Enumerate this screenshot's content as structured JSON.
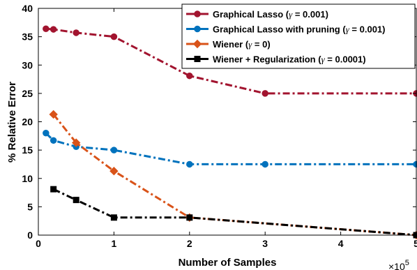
{
  "chart_data": {
    "type": "line",
    "xlabel": "Number of Samples",
    "ylabel": "% Relative Error",
    "x_multiplier": "×10",
    "x_multiplier_exp": "5",
    "xlim": [
      0,
      5
    ],
    "ylim": [
      0,
      40
    ],
    "xticks": [
      "0",
      "1",
      "2",
      "3",
      "4",
      "5"
    ],
    "yticks": [
      "0",
      "5",
      "10",
      "15",
      "20",
      "25",
      "30",
      "35",
      "40"
    ],
    "legend_position": "top-right",
    "series": [
      {
        "name": "Graphical Lasso (γ = 0.001)",
        "label_parts": [
          "Graphical Lasso (",
          "γ",
          " = 0.001)"
        ],
        "color": "#A2142F",
        "marker": "circle",
        "x": [
          0.1,
          0.2,
          0.5,
          1,
          2,
          3,
          5
        ],
        "y": [
          36.4,
          36.3,
          35.7,
          35.0,
          28.1,
          25.0,
          25.0
        ]
      },
      {
        "name": "Graphical Lasso with pruning (γ = 0.001)",
        "label_parts": [
          "Graphical Lasso with pruning (",
          "γ",
          " = 0.001)"
        ],
        "color": "#0072BD",
        "marker": "circle",
        "x": [
          0.1,
          0.2,
          0.5,
          1,
          2,
          3,
          5
        ],
        "y": [
          18.0,
          16.7,
          15.6,
          15.0,
          12.5,
          12.5,
          12.5
        ]
      },
      {
        "name": "Wiener (γ = 0)",
        "label_parts": [
          "Wiener (",
          "γ",
          " = 0)"
        ],
        "color": "#D95319",
        "marker": "diamond",
        "x": [
          0.2,
          0.5,
          1,
          2,
          5
        ],
        "y": [
          21.3,
          16.3,
          11.3,
          3.1,
          0.0
        ]
      },
      {
        "name": "Wiener + Regularization (γ = 0.0001)",
        "label_parts": [
          "Wiener + Regularization (",
          "γ",
          " = 0.0001)"
        ],
        "color": "#000000",
        "marker": "square",
        "x": [
          0.2,
          0.5,
          1,
          2,
          5
        ],
        "y": [
          8.1,
          6.2,
          3.1,
          3.1,
          0.0
        ]
      }
    ]
  }
}
